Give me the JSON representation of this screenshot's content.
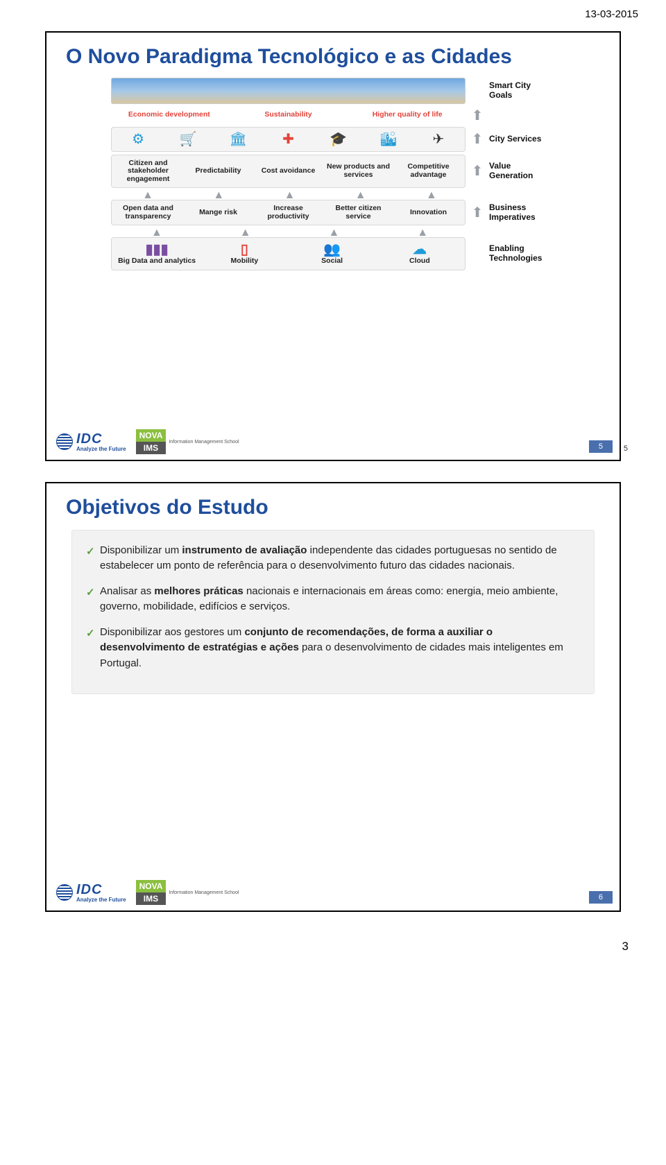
{
  "page_date": "13-03-2015",
  "page_number_bottom": "3",
  "slide1": {
    "title": "O Novo Paradigma Tecnológico e as Cidades",
    "pagenum_inner": "5",
    "pagenum_outer": "5",
    "rows": {
      "goals": {
        "label": "Smart City Goals",
        "cells": [
          "Economic development",
          "Sustainability",
          "Higher quality of life"
        ]
      },
      "services": {
        "label": "City Services"
      },
      "value": {
        "label": "Value Generation",
        "cells": [
          "Citizen and stakeholder engagement",
          "Predictability",
          "Cost avoidance",
          "New products and services",
          "Competitive advantage"
        ]
      },
      "business": {
        "label": "Business Imperatives",
        "cells": [
          "Open data and transparency",
          "Mange risk",
          "Increase productivity",
          "Better citizen service",
          "Innovation"
        ]
      },
      "enabling": {
        "label": "Enabling Technologies",
        "cells": [
          "Big Data and analytics",
          "Mobility",
          "Social",
          "Cloud"
        ]
      }
    }
  },
  "slide2": {
    "title": "Objetivos do Estudo",
    "pagenum_inner": "6",
    "items": [
      {
        "pre": "Disponibilizar um ",
        "b1": "instrumento de avaliação",
        "post": " independente das cidades portuguesas no sentido de estabelecer um ponto de referência para o desenvolvimento futuro das cidades nacionais."
      },
      {
        "pre": "Analisar as ",
        "b1": "melhores práticas",
        "post": " nacionais e internacionais em áreas como: energia, meio ambiente, governo, mobilidade, edifícios e serviços."
      },
      {
        "pre": "Disponibilizar aos gestores um ",
        "b1": "conjunto de recomendações, de forma a auxiliar o desenvolvimento de estratégias e ações",
        "post": " para o desenvolvimento de cidades mais inteligentes em Portugal."
      }
    ]
  },
  "logos": {
    "idc": "IDC",
    "idc_tag": "Analyze the Future",
    "nova_top": "NOVA",
    "nova_bot": "IMS",
    "ims_txt": "Information Management School"
  }
}
